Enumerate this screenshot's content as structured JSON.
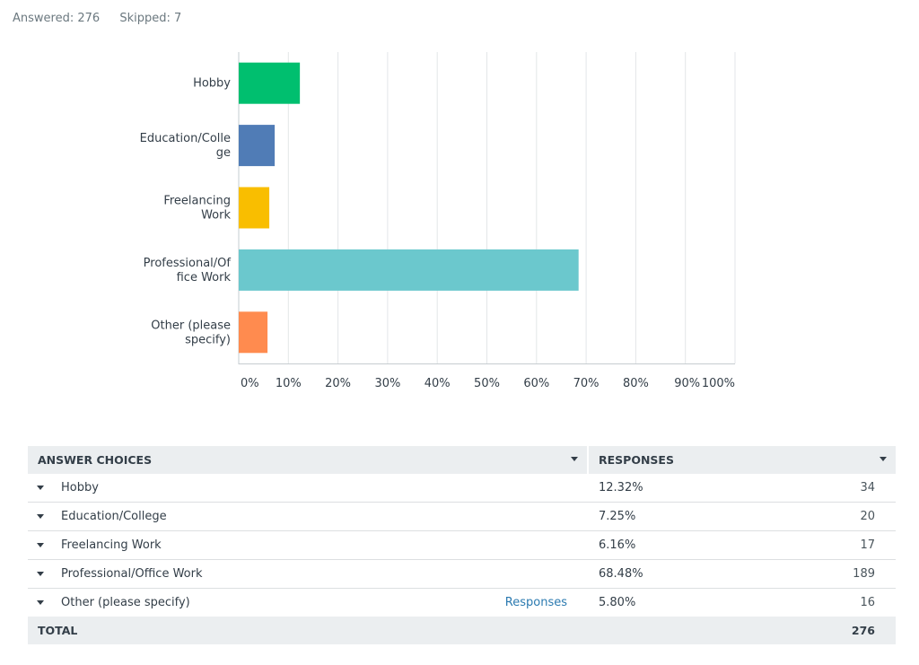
{
  "summary": {
    "answered": "Answered: 276",
    "skipped": "Skipped: 7"
  },
  "chart_data": {
    "type": "bar",
    "orientation": "horizontal",
    "categories": [
      "Hobby",
      "Education/College",
      "Freelancing Work",
      "Professional/Office Work",
      "Other (please specify)"
    ],
    "category_label_lines": [
      [
        "Hobby"
      ],
      [
        "Education/Colle",
        "ge"
      ],
      [
        "Freelancing",
        "Work"
      ],
      [
        "Professional/Of",
        "fice Work"
      ],
      [
        "Other (please",
        "specify)"
      ]
    ],
    "values": [
      12.32,
      7.25,
      6.16,
      68.48,
      5.8
    ],
    "colors": [
      "#00bf6f",
      "#507cb6",
      "#f9be00",
      "#6bc8cd",
      "#ff8b4f"
    ],
    "xlim": [
      0,
      100
    ],
    "xticks": [
      0,
      10,
      20,
      30,
      40,
      50,
      60,
      70,
      80,
      90,
      100
    ],
    "xtick_labels": [
      "0%",
      "10%",
      "20%",
      "30%",
      "40%",
      "50%",
      "60%",
      "70%",
      "80%",
      "90%",
      "100%"
    ],
    "grid": true
  },
  "table": {
    "header": {
      "choices": "ANSWER CHOICES",
      "responses": "RESPONSES"
    },
    "rows": [
      {
        "label": "Hobby",
        "pct": "12.32%",
        "count": "34"
      },
      {
        "label": "Education/College",
        "pct": "7.25%",
        "count": "20"
      },
      {
        "label": "Freelancing Work",
        "pct": "6.16%",
        "count": "17"
      },
      {
        "label": "Professional/Office Work",
        "pct": "68.48%",
        "count": "189"
      },
      {
        "label": "Other (please specify)",
        "pct": "5.80%",
        "count": "16",
        "link": "Responses"
      }
    ],
    "total": {
      "label": "TOTAL",
      "count": "276"
    }
  }
}
